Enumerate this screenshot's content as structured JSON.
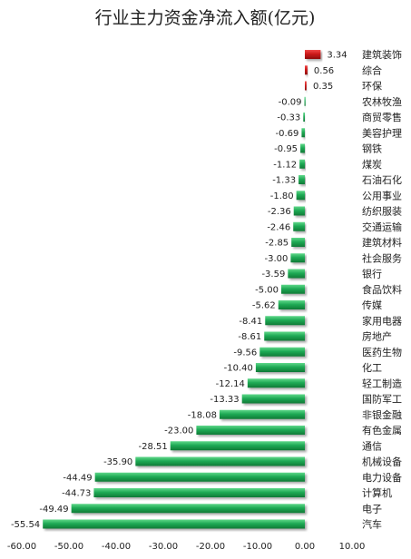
{
  "chart_data": {
    "type": "bar",
    "orientation": "horizontal",
    "title": "行业主力资金净流入额(亿元)",
    "xlabel": "",
    "ylabel": "",
    "xlim": [
      -60,
      10
    ],
    "x_ticks": [
      "-60.00",
      "-50.00",
      "-40.00",
      "-30.00",
      "-20.00",
      "-10.00",
      "0.00",
      "10.00"
    ],
    "grid": false,
    "legend": "none",
    "colors": {
      "positive": "#cc1a1a",
      "negative": "#1fa84f"
    },
    "categories": [
      "建筑装饰",
      "综合",
      "环保",
      "农林牧渔",
      "商贸零售",
      "美容护理",
      "钢铁",
      "煤炭",
      "石油石化",
      "公用事业",
      "纺织服装",
      "交通运输",
      "建筑材料",
      "社会服务",
      "银行",
      "食品饮料",
      "传媒",
      "家用电器",
      "房地产",
      "医药生物",
      "化工",
      "轻工制造",
      "国防军工",
      "非银金融",
      "有色金属",
      "通信",
      "机械设备",
      "电力设备",
      "计算机",
      "电子",
      "汽车"
    ],
    "values": [
      3.34,
      0.56,
      0.35,
      -0.09,
      -0.33,
      -0.69,
      -0.95,
      -1.12,
      -1.33,
      -1.8,
      -2.36,
      -2.46,
      -2.85,
      -3.0,
      -3.59,
      -5.0,
      -5.62,
      -8.41,
      -8.61,
      -9.56,
      -10.4,
      -12.14,
      -13.33,
      -18.08,
      -23.0,
      -28.51,
      -35.9,
      -44.49,
      -44.73,
      -49.49,
      -55.54
    ],
    "value_labels": [
      "3.34",
      "0.56",
      "0.35",
      "-0.09",
      "-0.33",
      "-0.69",
      "-0.95",
      "-1.12",
      "-1.33",
      "-1.80",
      "-2.36",
      "-2.46",
      "-2.85",
      "-3.00",
      "-3.59",
      "-5.00",
      "-5.62",
      "-8.41",
      "-8.61",
      "-9.56",
      "-10.40",
      "-12.14",
      "-13.33",
      "-18.08",
      "-23.00",
      "-28.51",
      "-35.90",
      "-44.49",
      "-44.73",
      "-49.49",
      "-55.54"
    ]
  }
}
